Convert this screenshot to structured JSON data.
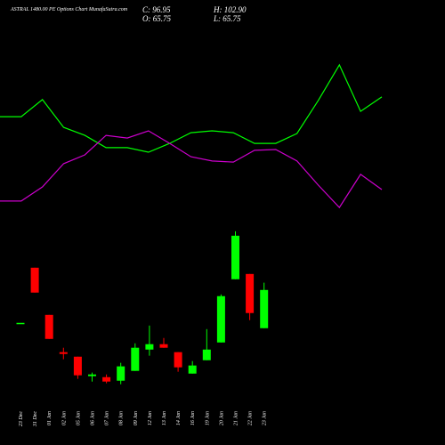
{
  "title": "ASTRAL 1480.00 PE Options Chart MunafaSutra.com",
  "legend_texts": [
    "C: 96.95",
    "O: 65.75",
    "H: 102.90",
    "L: 65.75"
  ],
  "chart_data": [
    {
      "type": "candlestick",
      "categories": [
        "23 Dec",
        "31 Dec",
        "01 Jan",
        "02 Jan",
        "05 Jan",
        "06 Jan",
        "07 Jan",
        "08 Jan",
        "09 Jan",
        "12 Jan",
        "13 Jan",
        "14 Jan",
        "16 Jan",
        "19 Jan",
        "20 Jan",
        "21 Jan",
        "22 Jan",
        "23 Jan"
      ],
      "open": [
        70.1,
        115.1,
        76.6,
        46.2,
        42.5,
        26.6,
        25.8,
        22.9,
        30.9,
        48.3,
        52.7,
        46.2,
        28.7,
        39.6,
        54.1,
        105.7,
        110.0,
        65.75
      ],
      "high": [
        70.1,
        115.1,
        76.6,
        49.8,
        42.5,
        29.5,
        28.0,
        37.5,
        53.4,
        67.9,
        57.8,
        46.2,
        38.9,
        65.0,
        93.3,
        144.8,
        110.0,
        102.9
      ],
      "low": [
        70.1,
        94.8,
        57.0,
        40.4,
        24.4,
        22.2,
        20.8,
        20.0,
        30.9,
        43.3,
        49.8,
        30.2,
        28.7,
        39.6,
        54.1,
        105.7,
        72.3,
        65.75
      ],
      "close": [
        70.1,
        94.8,
        57.0,
        44.7,
        27.3,
        28.0,
        22.2,
        34.6,
        49.8,
        52.7,
        49.8,
        33.8,
        35.3,
        48.3,
        91.9,
        141.2,
        78.1,
        96.95
      ],
      "up_color": "#00ff00",
      "down_color": "#ff0000",
      "ylim": [
        14,
        152
      ]
    },
    {
      "type": "line",
      "series": [
        {
          "color": "#00ff00",
          "values": [
            56.3,
            56.3,
            62.7,
            52.3,
            49.3,
            44.7,
            44.7,
            43,
            46.3,
            50.3,
            51,
            50.3,
            46.3,
            46.3,
            50,
            62.3,
            75.7,
            58.3,
            63.7
          ]
        },
        {
          "color": "#cc00cc",
          "values": [
            24.7,
            24.7,
            30,
            38.7,
            42,
            49.3,
            48.3,
            51,
            46.3,
            41.3,
            39.7,
            39.3,
            43.7,
            44,
            39.7,
            30.7,
            22.3,
            34.7,
            29
          ]
        }
      ],
      "ylim": [
        0,
        100
      ]
    }
  ]
}
